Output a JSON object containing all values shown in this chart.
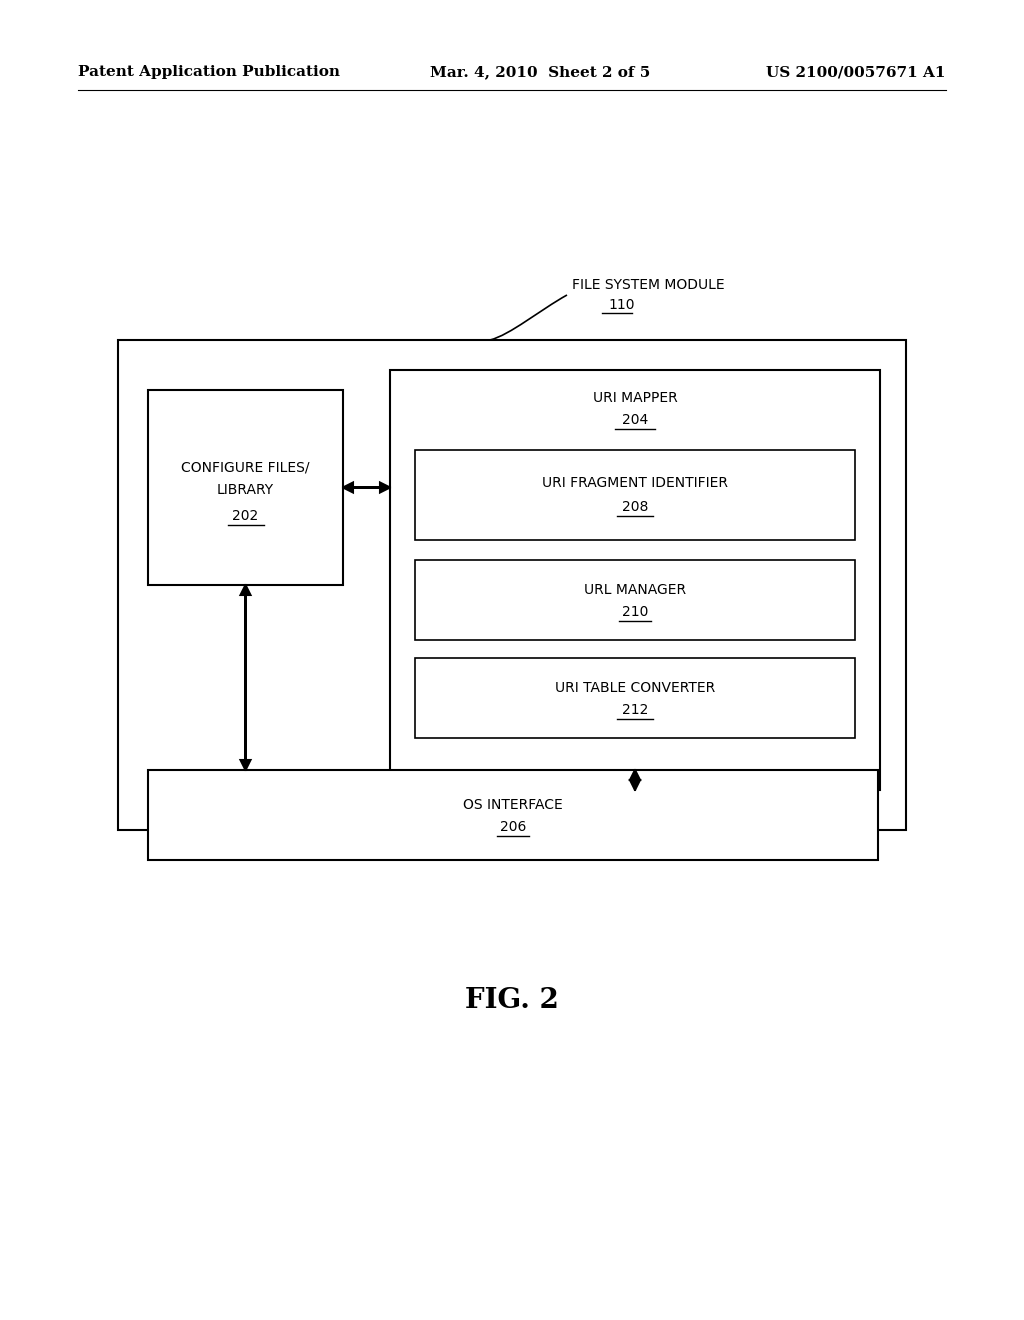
{
  "bg_color": "#ffffff",
  "header_left": "Patent Application Publication",
  "header_mid": "Mar. 4, 2010  Sheet 2 of 5",
  "header_right": "US 2100/0057671 A1",
  "fig_label": "FIG. 2",
  "outer_box_label": "FILE SYSTEM MODULE",
  "outer_box_num": "110",
  "configure_label1": "CONFIGURE FILES/",
  "configure_label2": "LIBRARY",
  "configure_num": "202",
  "uri_mapper_label": "URI MAPPER",
  "uri_mapper_num": "204",
  "fragment_label": "URI FRAGMENT IDENTIFIER",
  "fragment_num": "208",
  "url_manager_label": "URL MANAGER",
  "url_manager_num": "210",
  "uri_table_label": "URI TABLE CONVERTER",
  "uri_table_num": "212",
  "os_label": "OS INTERFACE",
  "os_num": "206"
}
